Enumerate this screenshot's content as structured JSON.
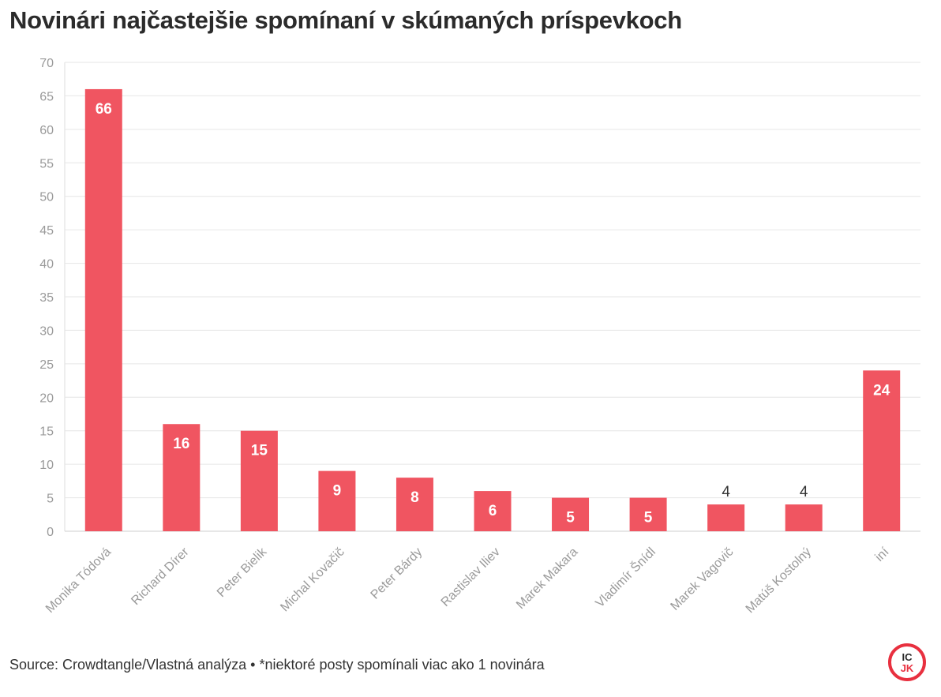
{
  "chart_data": {
    "type": "bar",
    "title": "Novinári najčastejšie spomínaní v skúmaných príspevkoch",
    "xlabel": "",
    "ylabel": "",
    "ylim": [
      0,
      70
    ],
    "yticks": [
      0,
      5,
      10,
      15,
      20,
      25,
      30,
      35,
      40,
      45,
      50,
      55,
      60,
      65,
      70
    ],
    "grid": true,
    "categories": [
      "Monika Tódová",
      "Richard Dírer",
      "Peter Bielik",
      "Michal Kovačič",
      "Peter Bárdy",
      "Rastislav Iliev",
      "Marek Makara",
      "Vladimír Šnídl",
      "Marek Vagovič",
      "Matúš Kostolný",
      "iní"
    ],
    "values": [
      66,
      16,
      15,
      9,
      8,
      6,
      5,
      5,
      4,
      4,
      24
    ],
    "bar_color": "#f05561"
  },
  "footer": {
    "source": "Source: Crowdtangle/Vlastná analýza • *niektoré posty spomínali viac ako 1 novinára"
  },
  "logo": {
    "line1": "IC",
    "line2": "JK",
    "color": "#e8303f"
  }
}
